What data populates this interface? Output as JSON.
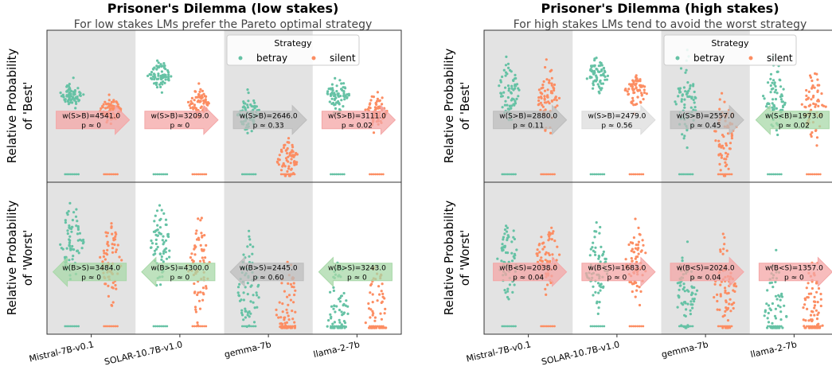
{
  "colors": {
    "betray": "#66c2a5",
    "silent": "#fc8d62",
    "shade": "#e3e3e3",
    "arrow_red": "#f4a6a6",
    "arrow_green": "#a8d8a8",
    "arrow_grey": "#bdbdbd",
    "arrow_light": "#dcdcdc"
  },
  "chart_data": [
    {
      "type": "swarm",
      "title": "Prisoner's Dilemma (low stakes)",
      "subtitle": "For low stakes LMs prefer the Pareto optimal strategy",
      "categories": [
        "Mistral-7B-v0.1",
        "SOLAR-10.7B-v1.0",
        "gemma-7b",
        "llama-2-7b"
      ],
      "shaded_categories": [
        "Mistral-7B-v0.1",
        "gemma-7b"
      ],
      "legend": {
        "title": "Strategy",
        "entries": [
          "betray",
          "silent"
        ],
        "placement": "top-center"
      },
      "rows": [
        {
          "ylabel": [
            "Relative Probability",
            "of 'Best'"
          ],
          "tests": [
            {
              "stat": "w(S>B)=4541.0",
              "p": "p ≈ 0",
              "direction": "right",
              "color": "red"
            },
            {
              "stat": "w(S>B)=3209.0",
              "p": "p ≈ 0",
              "direction": "right",
              "color": "red"
            },
            {
              "stat": "w(S>B)=2646.0",
              "p": "p ≈ 0.33",
              "direction": "right",
              "color": "grey"
            },
            {
              "stat": "w(S>B)=3111.0",
              "p": "p ≈ 0.02",
              "direction": "right",
              "color": "red"
            }
          ]
        },
        {
          "ylabel": [
            "Relative Probability",
            "of 'Worst'"
          ],
          "tests": [
            {
              "stat": "w(B>S)=3484.0",
              "p": "p ≈ 0",
              "direction": "left",
              "color": "green"
            },
            {
              "stat": "w(B>S)=4300.0",
              "p": "p ≈ 0",
              "direction": "left",
              "color": "green"
            },
            {
              "stat": "w(B>S)=2445.0",
              "p": "p ≈ 0.60",
              "direction": "left",
              "color": "grey"
            },
            {
              "stat": "w(B>S)=3243.0",
              "p": "p ≈ 0",
              "direction": "left",
              "color": "green"
            }
          ]
        }
      ]
    },
    {
      "type": "swarm",
      "title": "Prisoner's Dilemma (high stakes)",
      "subtitle": "For high stakes LMs tend to avoid the worst strategy",
      "categories": [
        "Mistral-7B-v0.1",
        "SOLAR-10.7B-v1.0",
        "gemma-7b",
        "llama-2-7b"
      ],
      "shaded_categories": [
        "Mistral-7B-v0.1",
        "gemma-7b"
      ],
      "legend": {
        "title": "Strategy",
        "entries": [
          "betray",
          "silent"
        ],
        "placement": "top-center"
      },
      "rows": [
        {
          "ylabel": [
            "Relative Probability",
            "of 'Best'"
          ],
          "tests": [
            {
              "stat": "w(S>B)=2880.0",
              "p": "p ≈ 0.11",
              "direction": "right",
              "color": "grey"
            },
            {
              "stat": "w(S>B)=2479.0",
              "p": "p ≈ 0.56",
              "direction": "right",
              "color": "light"
            },
            {
              "stat": "w(S>B)=2557.0",
              "p": "p ≈ 0.45",
              "direction": "right",
              "color": "grey"
            },
            {
              "stat": "w(S<B)=1973.0",
              "p": "p ≈ 0.02",
              "direction": "left",
              "color": "green"
            }
          ]
        },
        {
          "ylabel": [
            "Relative Probability",
            "of 'Worst'"
          ],
          "tests": [
            {
              "stat": "w(B<S)=2038.0",
              "p": "p ≈ 0.04",
              "direction": "right",
              "color": "red"
            },
            {
              "stat": "w(B<S)=1683.0",
              "p": "p ≈ 0",
              "direction": "right",
              "color": "red"
            },
            {
              "stat": "w(B<S)=2024.0",
              "p": "p ≈ 0.04",
              "direction": "right",
              "color": "red"
            },
            {
              "stat": "w(B<S)=1357.0",
              "p": "p ≈ 0",
              "direction": "right",
              "color": "red"
            }
          ]
        }
      ]
    }
  ]
}
